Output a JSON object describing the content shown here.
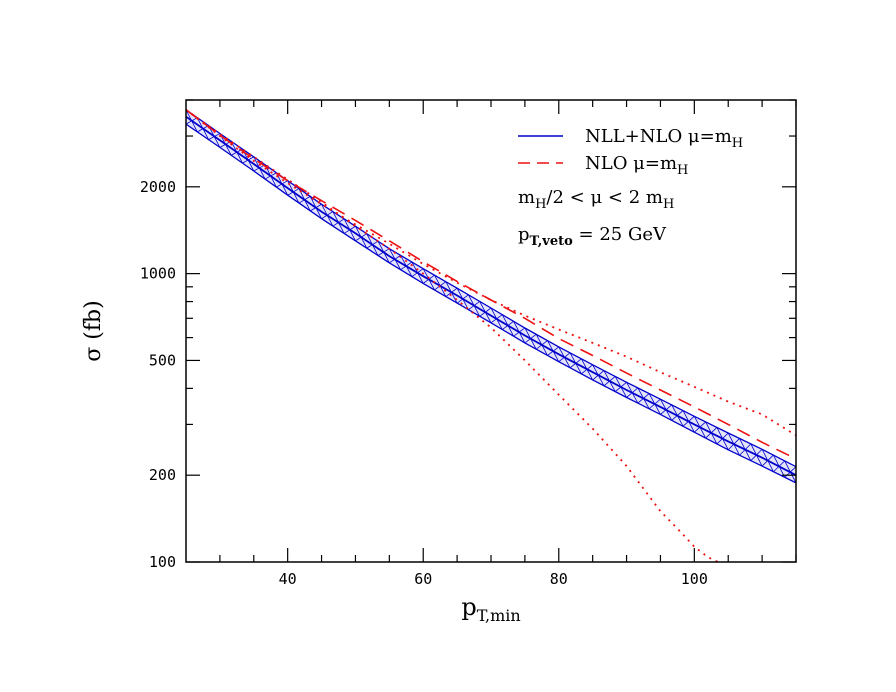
{
  "chart_data": {
    "type": "line",
    "title": "",
    "xlabel": "p",
    "xlabel_sub": "T,min",
    "ylabel": "σ (fb)",
    "xlim": [
      25,
      115
    ],
    "ylim": [
      100,
      4000
    ],
    "yscale": "log",
    "x_ticks": [
      40,
      60,
      80,
      100
    ],
    "y_ticks": [
      100,
      200,
      500,
      1000,
      2000
    ],
    "legend_position": "top-right",
    "legend": {
      "entry1": {
        "text": "NLL+NLO μ=m",
        "sub": "H"
      },
      "entry2": {
        "text": "NLO μ=m",
        "sub": "H"
      },
      "note1": {
        "a": "m",
        "a_sub": "H",
        "b": "/2 < μ < 2 m",
        "b_sub": "H"
      },
      "note2": {
        "a": "p",
        "a_sub": "T,veto",
        "b": " = 25 GeV"
      }
    },
    "series": [
      {
        "name": "NLL+NLO μ=m_H",
        "color": "#0000cc",
        "style": "solid-band",
        "x": [
          25,
          30,
          35,
          40,
          45,
          50,
          55,
          60,
          65,
          70,
          75,
          80,
          85,
          90,
          95,
          100,
          105,
          110,
          115
        ],
        "central": [
          3500,
          2900,
          2400,
          1980,
          1640,
          1380,
          1150,
          980,
          840,
          715,
          610,
          525,
          455,
          395,
          345,
          300,
          262,
          230,
          200
        ],
        "lower": [
          3300,
          2740,
          2270,
          1870,
          1550,
          1300,
          1090,
          925,
          790,
          675,
          575,
          495,
          428,
          372,
          325,
          282,
          245,
          215,
          188
        ],
        "upper": [
          3700,
          3060,
          2540,
          2100,
          1740,
          1460,
          1220,
          1040,
          890,
          760,
          648,
          557,
          483,
          420,
          367,
          320,
          280,
          246,
          214
        ]
      },
      {
        "name": "NLO μ=m_H",
        "color": "#ee1111",
        "style": "dashed",
        "x": [
          25,
          30,
          35,
          40,
          45,
          50,
          55,
          60,
          65,
          70,
          75,
          80,
          85,
          90,
          95,
          100,
          105,
          110,
          115
        ],
        "values": [
          3700,
          3020,
          2500,
          2100,
          1790,
          1530,
          1300,
          1100,
          940,
          810,
          700,
          595,
          520,
          452,
          395,
          345,
          300,
          260,
          228
        ]
      },
      {
        "name": "NLO upper",
        "color": "#ee1111",
        "style": "dotted",
        "x": [
          25,
          30,
          35,
          40,
          45,
          50,
          55,
          60,
          65,
          70,
          75,
          80,
          85,
          90,
          95,
          100,
          105,
          110,
          115
        ],
        "values": [
          3700,
          3000,
          2460,
          2060,
          1740,
          1480,
          1270,
          1080,
          930,
          810,
          715,
          640,
          575,
          515,
          455,
          405,
          360,
          325,
          275
        ]
      },
      {
        "name": "NLO lower",
        "color": "#ee1111",
        "style": "dotted",
        "x": [
          25,
          30,
          35,
          40,
          45,
          50,
          55,
          60,
          65,
          70,
          75,
          80,
          85,
          90,
          95,
          98,
          100,
          102,
          103.5
        ],
        "values": [
          3700,
          3050,
          2540,
          2120,
          1770,
          1460,
          1220,
          1000,
          810,
          650,
          500,
          380,
          290,
          215,
          150,
          127,
          113,
          104,
          100
        ]
      }
    ]
  }
}
